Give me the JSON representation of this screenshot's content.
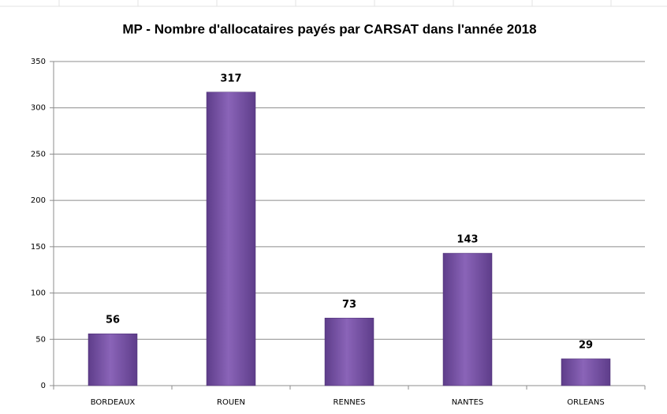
{
  "chart_data": {
    "type": "bar",
    "title": "MP - Nombre d'allocataires payés par CARSAT dans l'année 2018",
    "categories": [
      "BORDEAUX",
      "ROUEN",
      "RENNES",
      "NANTES",
      "ORLEANS"
    ],
    "values": [
      56,
      317,
      73,
      143,
      29
    ],
    "color": "#7b56a8",
    "ylim": [
      0,
      350
    ],
    "yticks": [
      0,
      50,
      100,
      150,
      200,
      250,
      300,
      350
    ],
    "grid": true
  }
}
